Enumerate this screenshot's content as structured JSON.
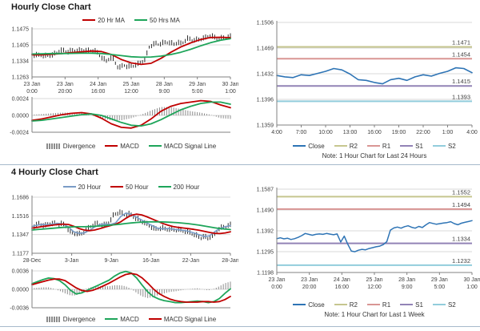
{
  "colors": {
    "red_ma": "#c00000",
    "green_ma": "#1ea55a",
    "blue_close": "#2e74b5",
    "light_blue_ma": "#7a9cc6",
    "black_price": "#1a1a1a",
    "divergence_gray": "#8c8c8c",
    "r2": "#c6c68f",
    "r1": "#d99694",
    "s1": "#9283b6",
    "s2": "#92cddc",
    "grid": "#d9d9d9",
    "divider": "#a7b9cb"
  },
  "legends": {
    "hourly_ma": [
      {
        "label": "20 Hr MA",
        "color": "#c00000"
      },
      {
        "label": "50 Hrs MA",
        "color": "#1ea55a"
      }
    ],
    "hourly_macd": [
      {
        "label": "Divergence",
        "color": "#8c8c8c"
      },
      {
        "label": "MACD",
        "color": "#c00000"
      },
      {
        "label": "MACD Signal Line",
        "color": "#1ea55a"
      }
    ],
    "sr": [
      {
        "label": "Close",
        "color": "#2e74b5"
      },
      {
        "label": "R2",
        "color": "#c6c68f"
      },
      {
        "label": "R1",
        "color": "#d99694"
      },
      {
        "label": "S1",
        "color": "#9283b6"
      },
      {
        "label": "S2",
        "color": "#92cddc"
      }
    ],
    "four_ma": [
      {
        "label": "20 Hour",
        "color": "#7a9cc6"
      },
      {
        "label": "50 Hour",
        "color": "#c00000"
      },
      {
        "label": "200 Hour",
        "color": "#1ea55a"
      }
    ],
    "four_macd": [
      {
        "label": "Divergence",
        "color": "#8c8c8c"
      },
      {
        "label": "MACD",
        "color": "#1ea55a"
      },
      {
        "label": "MACD Signal Line",
        "color": "#c00000"
      }
    ]
  },
  "chart_data": {
    "hourly_price": {
      "type": "line",
      "title": "Hourly Close Chart",
      "yticks": [
        "1.1475",
        "1.1405",
        "1.1334",
        "1.1263"
      ],
      "ylim": [
        1.1263,
        1.1475
      ],
      "xticks": [
        [
          "23 Jan",
          "0:00"
        ],
        [
          "23 Jan",
          "20:00"
        ],
        [
          "24 Jan",
          "16:00"
        ],
        [
          "25 Jan",
          "12:00"
        ],
        [
          "28 Jan",
          "9:00"
        ],
        [
          "29 Jan",
          "5:00"
        ],
        [
          "30 Jan",
          "1:00"
        ]
      ],
      "series": [
        {
          "name": "Close",
          "color": "#1a1a1a",
          "style": "bars",
          "values": [
            1.1358,
            1.1362,
            1.1357,
            1.136,
            1.1355,
            1.1358,
            1.1363,
            1.1368,
            1.1382,
            1.1378,
            1.1375,
            1.1378,
            1.138,
            1.1378,
            1.1382,
            1.138,
            1.1378,
            1.138,
            1.1376,
            1.136,
            1.1345,
            1.1332,
            1.135,
            1.134,
            1.131,
            1.1305,
            1.1316,
            1.1308,
            1.131,
            1.1315,
            1.132,
            1.1332,
            1.134,
            1.1395,
            1.1405,
            1.141,
            1.1408,
            1.1412,
            1.1418,
            1.1412,
            1.1408,
            1.1415,
            1.141,
            1.142,
            1.1432,
            1.1428,
            1.1424,
            1.1428,
            1.1432,
            1.1436,
            1.1446,
            1.144,
            1.1434,
            1.143,
            1.1436,
            1.1438,
            1.144
          ]
        },
        {
          "name": "20 Hr MA",
          "color": "#c00000",
          "width": 1.8,
          "values": [
            1.136,
            1.1361,
            1.1363,
            1.1366,
            1.137,
            1.1374,
            1.1377,
            1.1375,
            1.1362,
            1.134,
            1.1325,
            1.1318,
            1.1323,
            1.1345,
            1.1372,
            1.1395,
            1.1413,
            1.1428,
            1.1437,
            1.1438,
            1.1436
          ]
        },
        {
          "name": "50 Hrs MA",
          "color": "#1ea55a",
          "width": 1.8,
          "values": [
            1.1364,
            1.1365,
            1.1366,
            1.1366,
            1.1367,
            1.1368,
            1.1368,
            1.1366,
            1.1362,
            1.1357,
            1.1352,
            1.135,
            1.1351,
            1.1355,
            1.1362,
            1.1372,
            1.1385,
            1.14,
            1.1414,
            1.1425,
            1.1432
          ]
        }
      ]
    },
    "hourly_macd": {
      "type": "line",
      "yticks": [
        "0.0024",
        "0.0000",
        "-0.0024"
      ],
      "ylim": [
        -0.0024,
        0.0024
      ],
      "divergence": {
        "a": "MACD",
        "b": "MACD Signal Line"
      },
      "series": [
        {
          "name": "MACD",
          "color": "#c00000",
          "width": 1.8,
          "values": [
            -0.0007,
            -0.0005,
            -0.0002,
            0.0001,
            0.0003,
            0.0004,
            0.0002,
            -0.0004,
            -0.0012,
            -0.0017,
            -0.0018,
            -0.0014,
            -0.0005,
            0.0006,
            0.0013,
            0.0017,
            0.0019,
            0.0021,
            0.002,
            0.0015,
            0.0011
          ]
        },
        {
          "name": "MACD Signal Line",
          "color": "#1ea55a",
          "width": 1.8,
          "values": [
            -0.0008,
            -0.0007,
            -0.0005,
            -0.0003,
            -0.0001,
            0.0001,
            0.0002,
            0.0,
            -0.0005,
            -0.001,
            -0.0014,
            -0.0015,
            -0.0012,
            -0.0006,
            0.0001,
            0.0008,
            0.0013,
            0.0017,
            0.0019,
            0.0019,
            0.0016
          ]
        }
      ]
    },
    "hourly_sr": {
      "type": "line",
      "note": "Note: 1 Hour Chart for Last 24 Hours",
      "yticks": [
        "1.1506",
        "1.1469",
        "1.1432",
        "1.1396",
        "1.1359"
      ],
      "ylim": [
        1.1359,
        1.1506
      ],
      "xticks": [
        "4:00",
        "7:00",
        "10:00",
        "13:00",
        "16:00",
        "19:00",
        "22:00",
        "1:00",
        "4:00"
      ],
      "levels": [
        {
          "name": "R2",
          "value": 1.1471,
          "label": "1.1471",
          "color": "#c6c68f"
        },
        {
          "name": "R1",
          "value": 1.1454,
          "label": "1.1454",
          "color": "#d99694"
        },
        {
          "name": "S1",
          "value": 1.1415,
          "label": "1.1415",
          "color": "#9283b6"
        },
        {
          "name": "S2",
          "value": 1.1393,
          "label": "1.1393",
          "color": "#92cddc"
        }
      ],
      "series": [
        {
          "name": "Close",
          "color": "#2e74b5",
          "width": 1.6,
          "values": [
            1.143,
            1.1428,
            1.1427,
            1.1431,
            1.143,
            1.1433,
            1.1436,
            1.144,
            1.1438,
            1.1432,
            1.1424,
            1.1423,
            1.142,
            1.1418,
            1.1424,
            1.1426,
            1.1423,
            1.1428,
            1.1431,
            1.1429,
            1.1433,
            1.1436,
            1.1441,
            1.144,
            1.1434
          ]
        }
      ]
    },
    "four_hourly_price": {
      "type": "line",
      "title": "4 Hourly Close Chart",
      "yticks": [
        "1.1686",
        "1.1516",
        "1.1347",
        "1.1177"
      ],
      "ylim": [
        1.1177,
        1.1686
      ],
      "xticks": [
        "28-Dec",
        "3-Jan",
        "9-Jan",
        "16-Jan",
        "22-Jan",
        "28-Jan"
      ],
      "series": [
        {
          "name": "Close",
          "color": "#1a1a1a",
          "style": "bars",
          "values": [
            1.1415,
            1.143,
            1.1445,
            1.1438,
            1.1428,
            1.144,
            1.1452,
            1.1445,
            1.1438,
            1.1448,
            1.143,
            1.14,
            1.1368,
            1.1352,
            1.136,
            1.1345,
            1.1372,
            1.1395,
            1.142,
            1.1438,
            1.1448,
            1.1438,
            1.143,
            1.1445,
            1.1468,
            1.152,
            1.1542,
            1.1548,
            1.1535,
            1.1522,
            1.1535,
            1.1512,
            1.1492,
            1.1478,
            1.1462,
            1.1448,
            1.1428,
            1.1408,
            1.1395,
            1.14,
            1.1406,
            1.1398,
            1.1392,
            1.1396,
            1.1388,
            1.1392,
            1.1384,
            1.1376,
            1.137,
            1.1358,
            1.1344,
            1.133,
            1.1318,
            1.133,
            1.1312,
            1.1325,
            1.1345,
            1.139,
            1.1405,
            1.1415,
            1.1425,
            1.1432
          ]
        },
        {
          "name": "20 Hour",
          "color": "#7a9cc6",
          "width": 1.6,
          "values": [
            1.142,
            1.1432,
            1.1438,
            1.1435,
            1.1442,
            1.1448,
            1.144,
            1.1415,
            1.1372,
            1.1358,
            1.1362,
            1.1385,
            1.1415,
            1.1438,
            1.1442,
            1.1438,
            1.1452,
            1.151,
            1.1542,
            1.153,
            1.1505,
            1.1478,
            1.1452,
            1.1428,
            1.1405,
            1.1398,
            1.1402,
            1.1396,
            1.139,
            1.1385,
            1.1376,
            1.1362,
            1.1345,
            1.1328,
            1.1335,
            1.1372,
            1.1402,
            1.1418,
            1.1428
          ]
        },
        {
          "name": "50 Hour",
          "color": "#c00000",
          "width": 1.8,
          "values": [
            1.1405,
            1.1412,
            1.142,
            1.1426,
            1.1432,
            1.1438,
            1.1442,
            1.1438,
            1.1422,
            1.1402,
            1.1388,
            1.1382,
            1.1388,
            1.14,
            1.1415,
            1.1428,
            1.144,
            1.1462,
            1.1495,
            1.1522,
            1.1532,
            1.1525,
            1.1508,
            1.1488,
            1.1468,
            1.1448,
            1.1432,
            1.142,
            1.1412,
            1.1406,
            1.14,
            1.1394,
            1.1386,
            1.1376,
            1.1366,
            1.1358,
            1.1356,
            1.1362,
            1.1372
          ]
        },
        {
          "name": "200 Hour",
          "color": "#1ea55a",
          "width": 1.8,
          "values": [
            1.1388,
            1.1392,
            1.1396,
            1.14,
            1.1404,
            1.1408,
            1.1412,
            1.1415,
            1.1417,
            1.1418,
            1.1418,
            1.1419,
            1.1421,
            1.1424,
            1.1428,
            1.1432,
            1.1436,
            1.1441,
            1.1447,
            1.1452,
            1.1456,
            1.1459,
            1.1461,
            1.1462,
            1.1462,
            1.1461,
            1.1459,
            1.1457,
            1.1454,
            1.145,
            1.1445,
            1.1439,
            1.1432,
            1.1424,
            1.1416,
            1.1408,
            1.1401,
            1.1396,
            1.1392
          ]
        }
      ]
    },
    "four_hourly_macd": {
      "type": "line",
      "yticks": [
        "0.0036",
        "0.0000",
        "-0.0036"
      ],
      "ylim": [
        -0.0036,
        0.0036
      ],
      "divergence": {
        "a": "MACD",
        "b": "MACD Signal Line"
      },
      "series": [
        {
          "name": "MACD",
          "color": "#1ea55a",
          "width": 1.8,
          "values": [
            0.0011,
            0.0015,
            0.0019,
            0.0022,
            0.0021,
            0.0017,
            0.0009,
            -0.0002,
            -0.0009,
            -0.0007,
            -0.0002,
            0.0003,
            0.0008,
            0.0013,
            0.0018,
            0.0026,
            0.0032,
            0.0035,
            0.0032,
            0.0022,
            0.0008,
            -0.0005,
            -0.0014,
            -0.0019,
            -0.0022,
            -0.0024,
            -0.0026,
            -0.0026,
            -0.0025,
            -0.0024,
            -0.0023,
            -0.0024,
            -0.0026,
            -0.0024,
            -0.0018,
            -0.0008,
            0.0001
          ]
        },
        {
          "name": "MACD Signal Line",
          "color": "#c00000",
          "width": 1.8,
          "values": [
            0.0009,
            0.0012,
            0.0015,
            0.0018,
            0.002,
            0.002,
            0.0017,
            0.001,
            0.0003,
            -0.0002,
            -0.0004,
            -0.0002,
            0.0002,
            0.0007,
            0.0012,
            0.0018,
            0.0024,
            0.0029,
            0.0031,
            0.0029,
            0.0022,
            0.0012,
            0.0001,
            -0.0008,
            -0.0014,
            -0.0019,
            -0.0022,
            -0.0024,
            -0.0025,
            -0.0025,
            -0.0025,
            -0.0024,
            -0.0024,
            -0.0025,
            -0.0024,
            -0.002,
            -0.0014
          ]
        }
      ]
    },
    "weekly_sr": {
      "type": "line",
      "note": "Note: 1 Hour Chart for Last 1 Week",
      "yticks": [
        "1.1587",
        "1.1490",
        "1.1392",
        "1.1295",
        "1.1198"
      ],
      "ylim": [
        1.1198,
        1.1587
      ],
      "xticks": [
        [
          "23 Jan",
          "0:00"
        ],
        [
          "23 Jan",
          "20:00"
        ],
        [
          "24 Jan",
          "16:00"
        ],
        [
          "25 Jan",
          "12:00"
        ],
        [
          "28 Jan",
          "9:00"
        ],
        [
          "29 Jan",
          "5:00"
        ],
        [
          "30 Jan",
          "1:00"
        ]
      ],
      "levels": [
        {
          "name": "R2",
          "value": 1.1552,
          "label": "1.1552",
          "color": "#c6c68f"
        },
        {
          "name": "R1",
          "value": 1.1494,
          "label": "1.1494",
          "color": "#d99694"
        },
        {
          "name": "S1",
          "value": 1.1334,
          "label": "1.1334",
          "color": "#9283b6"
        },
        {
          "name": "S2",
          "value": 1.1232,
          "label": "1.1232",
          "color": "#92cddc"
        }
      ],
      "series": [
        {
          "name": "Close",
          "color": "#2e74b5",
          "width": 1.5,
          "values": [
            1.1356,
            1.136,
            1.1355,
            1.1358,
            1.1352,
            1.1356,
            1.1362,
            1.137,
            1.138,
            1.1376,
            1.1372,
            1.1376,
            1.1378,
            1.1376,
            1.138,
            1.1377,
            1.1374,
            1.1378,
            1.134,
            1.1368,
            1.133,
            1.1298,
            1.1295,
            1.1302,
            1.1306,
            1.1304,
            1.131,
            1.1314,
            1.1318,
            1.1321,
            1.1328,
            1.1342,
            1.1396,
            1.1406,
            1.141,
            1.1405,
            1.1412,
            1.1416,
            1.1409,
            1.1405,
            1.1413,
            1.1408,
            1.142,
            1.1431,
            1.1427,
            1.1423,
            1.1426,
            1.1429,
            1.1431,
            1.1435,
            1.1426,
            1.1421,
            1.1428,
            1.1432,
            1.1436,
            1.144
          ]
        }
      ]
    }
  }
}
